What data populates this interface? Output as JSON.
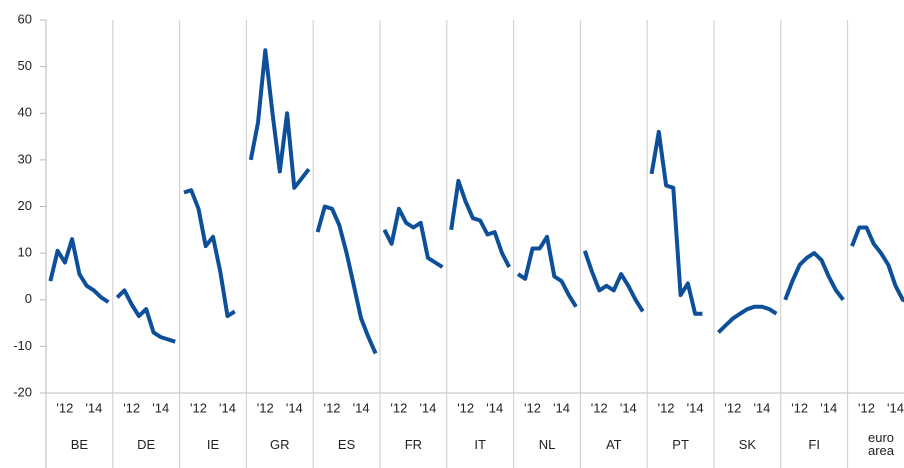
{
  "chart_data": {
    "type": "line",
    "color": "#0e4f9a",
    "ylim": [
      -20,
      60
    ],
    "yticks": [
      -20,
      -10,
      0,
      10,
      20,
      30,
      40,
      50,
      60
    ],
    "xlim": [
      2010.7,
      2015.3
    ],
    "xticks": [
      {
        "value": 2012,
        "label": "'12"
      },
      {
        "value": 2014,
        "label": "'14"
      }
    ],
    "x": [
      2011,
      2011.5,
      2012,
      2012.5,
      2013,
      2013.5,
      2014,
      2014.5,
      2015
    ],
    "panels": [
      {
        "name": "BE",
        "values": [
          4,
          10.5,
          8,
          13,
          5.5,
          3,
          2,
          0.5,
          -0.5
        ]
      },
      {
        "name": "DE",
        "values": [
          0.5,
          2,
          -1,
          -3.5,
          -2,
          -7,
          -8,
          -8.5,
          -9
        ]
      },
      {
        "name": "IE",
        "values": [
          23,
          23.5,
          19.5,
          11.5,
          13.5,
          6,
          -3.5,
          -2.5,
          null
        ]
      },
      {
        "name": "GR",
        "values": [
          30,
          38,
          53.5,
          40,
          27.5,
          40,
          24,
          26,
          28
        ]
      },
      {
        "name": "ES",
        "values": [
          14.5,
          20,
          19.5,
          16,
          10,
          3,
          -4,
          -8,
          -11.5
        ]
      },
      {
        "name": "FR",
        "values": [
          15,
          12,
          19.5,
          16.5,
          15.5,
          16.5,
          9,
          8,
          7
        ]
      },
      {
        "name": "IT",
        "values": [
          15,
          25.5,
          21,
          17.5,
          17,
          14,
          14.5,
          10,
          7
        ]
      },
      {
        "name": "NL",
        "values": [
          5.5,
          4.5,
          11,
          11,
          13.5,
          5,
          4,
          1,
          -1.5
        ]
      },
      {
        "name": "AT",
        "values": [
          10.5,
          6,
          2,
          3,
          2,
          5.5,
          3,
          0,
          -2.5
        ]
      },
      {
        "name": "PT",
        "values": [
          27,
          36,
          24.5,
          24,
          1,
          3.5,
          -3,
          -3,
          null
        ]
      },
      {
        "name": "SK",
        "values": [
          -7,
          -5.5,
          -4,
          -3,
          -2,
          -1.5,
          -1.5,
          -2,
          -3
        ]
      },
      {
        "name": "FI",
        "values": [
          0,
          4,
          7.5,
          9,
          10,
          8.5,
          5,
          2,
          0
        ]
      },
      {
        "name": "euro area",
        "values": [
          11.5,
          15.5,
          15.5,
          12,
          10,
          7.5,
          3,
          0,
          -0.5
        ]
      }
    ]
  }
}
